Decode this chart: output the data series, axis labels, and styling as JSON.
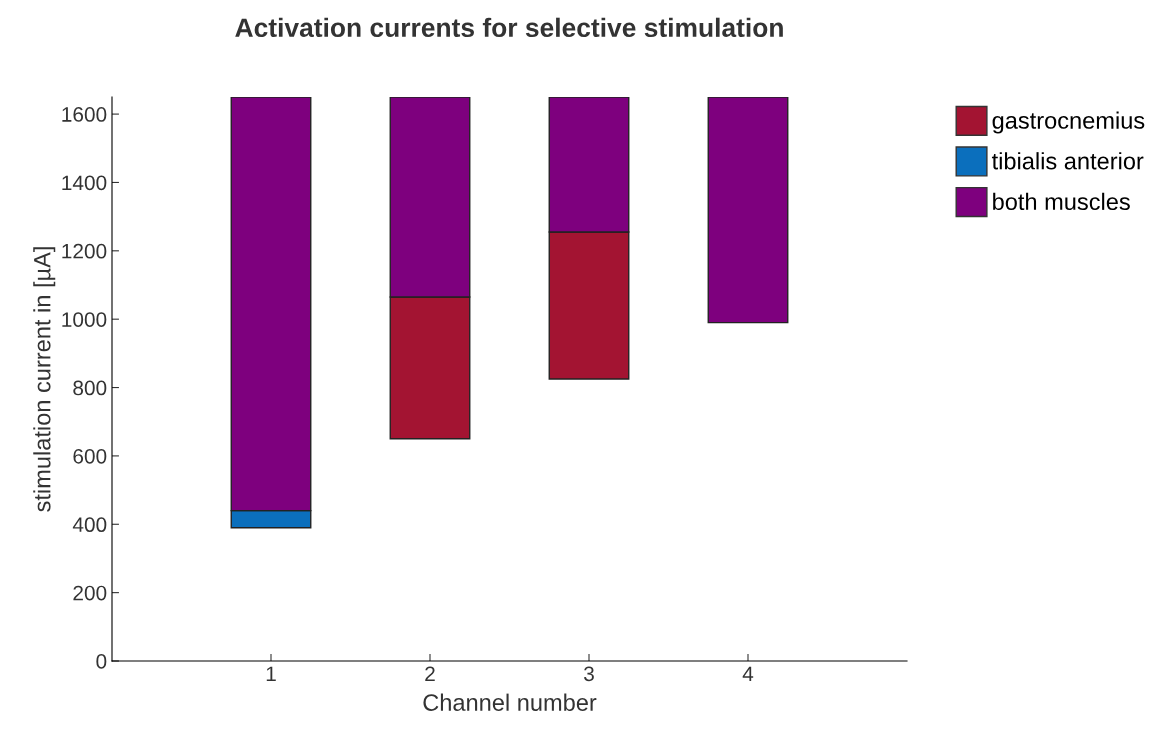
{
  "chart_data": {
    "type": "bar",
    "title": "Activation currents for selective stimulation",
    "xlabel": "Channel number",
    "ylabel": "stimulation current in [µA]",
    "x": [
      1,
      2,
      3,
      4
    ],
    "xlim": [
      0,
      5
    ],
    "xticks": [
      1,
      2,
      3,
      4
    ],
    "ylim": [
      0,
      1650
    ],
    "yticks": [
      0,
      200,
      400,
      600,
      800,
      1000,
      1200,
      1400,
      1600
    ],
    "series": [
      {
        "name": "gastrocnemius",
        "color": "#a31432",
        "values": [
          null,
          415,
          430,
          null
        ],
        "base": [
          null,
          650,
          825,
          null
        ]
      },
      {
        "name": "tibialis anterior",
        "color": "#0b6fbd",
        "values": [
          50,
          null,
          null,
          null
        ],
        "base": [
          390,
          null,
          null,
          null
        ]
      },
      {
        "name": "both muscles",
        "color": "#7e007e",
        "values": [
          1210,
          585,
          395,
          660
        ],
        "base": [
          440,
          1065,
          1255,
          990
        ]
      }
    ],
    "legend": "top right",
    "grid": false
  }
}
